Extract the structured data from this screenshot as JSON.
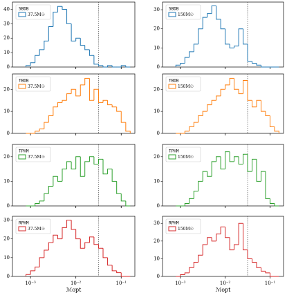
{
  "chart_data": [
    {
      "type": "histogram",
      "legend_title": "SBDB",
      "xscale": "log",
      "xlim": [
        0.0004,
        0.2
      ],
      "ylim": [
        0,
        45
      ],
      "yticks": [
        0,
        10,
        20,
        30,
        40
      ],
      "vline": 0.0316,
      "bins": [
        0.000794,
        0.001,
        0.00126,
        0.00158,
        0.002,
        0.00251,
        0.00316,
        0.00398,
        0.00501,
        0.00631,
        0.00794,
        0.01,
        0.0126,
        0.0158,
        0.02,
        0.0251,
        0.0316,
        0.0398,
        0.0501,
        0.0631,
        0.0794,
        0.1,
        0.126,
        0.158
      ],
      "series": [
        {
          "name": "37.5M☉",
          "color": "#1f77b4",
          "values": [
            1,
            3,
            8,
            12,
            18,
            28,
            38,
            42,
            40,
            30,
            18,
            20,
            15,
            12,
            8,
            2,
            1,
            0,
            1,
            0,
            0,
            1,
            0
          ]
        }
      ]
    },
    {
      "type": "histogram",
      "legend_title": "SBDB",
      "xscale": "log",
      "xlim": [
        0.0004,
        0.2
      ],
      "ylim": [
        0,
        34
      ],
      "yticks": [
        0,
        10,
        20,
        30
      ],
      "vline": 0.0316,
      "bins": [
        0.000794,
        0.001,
        0.00126,
        0.00158,
        0.002,
        0.00251,
        0.00316,
        0.00398,
        0.00501,
        0.00631,
        0.00794,
        0.01,
        0.0126,
        0.0158,
        0.02,
        0.0251,
        0.0316,
        0.0398,
        0.0501,
        0.0631,
        0.0794,
        0.1,
        0.126,
        0.158
      ],
      "series": [
        {
          "name": "150M☉",
          "color": "#1f77b4",
          "values": [
            1,
            2,
            5,
            8,
            12,
            20,
            26,
            28,
            32,
            25,
            20,
            12,
            10,
            11,
            20,
            12,
            3,
            2,
            1,
            0,
            0,
            0,
            0
          ]
        }
      ]
    },
    {
      "type": "histogram",
      "legend_title": "TBDB",
      "xscale": "log",
      "xlim": [
        0.0004,
        0.2
      ],
      "ylim": [
        0,
        27
      ],
      "yticks": [
        0,
        10,
        20
      ],
      "vline": 0.0316,
      "bins": [
        0.000794,
        0.001,
        0.00126,
        0.00158,
        0.002,
        0.00251,
        0.00316,
        0.00398,
        0.00501,
        0.00631,
        0.00794,
        0.01,
        0.0126,
        0.0158,
        0.02,
        0.0251,
        0.0316,
        0.0398,
        0.0501,
        0.0631,
        0.0794,
        0.1,
        0.126,
        0.158
      ],
      "series": [
        {
          "name": "37.5M☉",
          "color": "#ff7f0e",
          "values": [
            0,
            0,
            1,
            2,
            5,
            8,
            12,
            14,
            15,
            18,
            20,
            17,
            22,
            25,
            15,
            20,
            14,
            15,
            13,
            12,
            10,
            5,
            1
          ]
        }
      ]
    },
    {
      "type": "histogram",
      "legend_title": "TBDB",
      "xscale": "log",
      "xlim": [
        0.0004,
        0.2
      ],
      "ylim": [
        0,
        27
      ],
      "yticks": [
        0,
        10,
        20
      ],
      "vline": 0.0316,
      "bins": [
        0.000794,
        0.001,
        0.00126,
        0.00158,
        0.002,
        0.00251,
        0.00316,
        0.00398,
        0.00501,
        0.00631,
        0.00794,
        0.01,
        0.0126,
        0.0158,
        0.02,
        0.0251,
        0.0316,
        0.0398,
        0.0501,
        0.0631,
        0.0794,
        0.1,
        0.126,
        0.158
      ],
      "series": [
        {
          "name": "150M☉",
          "color": "#ff7f0e",
          "values": [
            0,
            0,
            1,
            3,
            5,
            8,
            10,
            13,
            15,
            17,
            20,
            22,
            25,
            20,
            18,
            24,
            15,
            12,
            15,
            10,
            8,
            3,
            1
          ]
        }
      ]
    },
    {
      "type": "histogram",
      "legend_title": "TPHM",
      "xscale": "log",
      "xlim": [
        0.0004,
        0.2
      ],
      "ylim": [
        0,
        25
      ],
      "yticks": [
        0,
        10,
        20
      ],
      "vline": 0.0316,
      "bins": [
        0.000794,
        0.001,
        0.00126,
        0.00158,
        0.002,
        0.00251,
        0.00316,
        0.00398,
        0.00501,
        0.00631,
        0.00794,
        0.01,
        0.0126,
        0.0158,
        0.02,
        0.0251,
        0.0316,
        0.0398,
        0.0501,
        0.0631,
        0.0794,
        0.1,
        0.126,
        0.158
      ],
      "series": [
        {
          "name": "37.5M☉",
          "color": "#2ca02c",
          "values": [
            0,
            0,
            1,
            2,
            5,
            8,
            12,
            10,
            15,
            18,
            15,
            20,
            12,
            18,
            20,
            17,
            19,
            13,
            15,
            10,
            5,
            2,
            0
          ]
        }
      ]
    },
    {
      "type": "histogram",
      "legend_title": "TPHM",
      "xscale": "log",
      "xlim": [
        0.0004,
        0.2
      ],
      "ylim": [
        0,
        25
      ],
      "yticks": [
        0,
        10,
        20
      ],
      "vline": 0.0316,
      "bins": [
        0.000794,
        0.001,
        0.00126,
        0.00158,
        0.002,
        0.00251,
        0.00316,
        0.00398,
        0.00501,
        0.00631,
        0.00794,
        0.01,
        0.0126,
        0.0158,
        0.02,
        0.0251,
        0.0316,
        0.0398,
        0.0501,
        0.0631,
        0.0794,
        0.1,
        0.126,
        0.158
      ],
      "series": [
        {
          "name": "150M☉",
          "color": "#2ca02c",
          "values": [
            0,
            0,
            1,
            3,
            6,
            10,
            14,
            12,
            18,
            20,
            15,
            22,
            18,
            20,
            17,
            21,
            14,
            19,
            10,
            14,
            3,
            1,
            0
          ]
        }
      ]
    },
    {
      "type": "histogram",
      "legend_title": "RPHM",
      "xscale": "log",
      "xlim": [
        0.0004,
        0.2
      ],
      "ylim": [
        0,
        32
      ],
      "yticks": [
        0,
        10,
        20,
        30
      ],
      "vline": 0.0316,
      "xlabel": "ℳopt",
      "xticks": [
        {
          "value": 0.001,
          "label": "10⁻³"
        },
        {
          "value": 0.01,
          "label": "10⁻²"
        },
        {
          "value": 0.1,
          "label": "10⁻¹"
        }
      ],
      "bins": [
        0.000794,
        0.001,
        0.00126,
        0.00158,
        0.002,
        0.00251,
        0.00316,
        0.00398,
        0.00501,
        0.00631,
        0.00794,
        0.01,
        0.0126,
        0.0158,
        0.02,
        0.0251,
        0.0316,
        0.0398,
        0.0501,
        0.0631,
        0.0794,
        0.1,
        0.126,
        0.158
      ],
      "series": [
        {
          "name": "37.5M☉",
          "color": "#d62728",
          "values": [
            1,
            3,
            5,
            10,
            14,
            18,
            22,
            20,
            26,
            30,
            25,
            20,
            15,
            18,
            21,
            17,
            15,
            10,
            6,
            3,
            2,
            0,
            0
          ]
        }
      ]
    },
    {
      "type": "histogram",
      "legend_title": "RPHM",
      "xscale": "log",
      "xlim": [
        0.0004,
        0.2
      ],
      "ylim": [
        0,
        34
      ],
      "yticks": [
        0,
        10,
        20,
        30
      ],
      "vline": 0.0316,
      "xlabel": "ℳopt",
      "xticks": [
        {
          "value": 0.001,
          "label": "10⁻³"
        },
        {
          "value": 0.01,
          "label": "10⁻²"
        },
        {
          "value": 0.1,
          "label": "10⁻¹"
        }
      ],
      "bins": [
        0.000794,
        0.001,
        0.00126,
        0.00158,
        0.002,
        0.00251,
        0.00316,
        0.00398,
        0.00501,
        0.00631,
        0.00794,
        0.01,
        0.0126,
        0.0158,
        0.02,
        0.0251,
        0.0316,
        0.0398,
        0.0501,
        0.0631,
        0.0794,
        0.1,
        0.126,
        0.158
      ],
      "series": [
        {
          "name": "150M☉",
          "color": "#d62728",
          "values": [
            0,
            1,
            2,
            5,
            8,
            12,
            18,
            22,
            20,
            24,
            28,
            22,
            15,
            18,
            30,
            15,
            10,
            8,
            5,
            3,
            2,
            0,
            0
          ]
        }
      ]
    }
  ]
}
